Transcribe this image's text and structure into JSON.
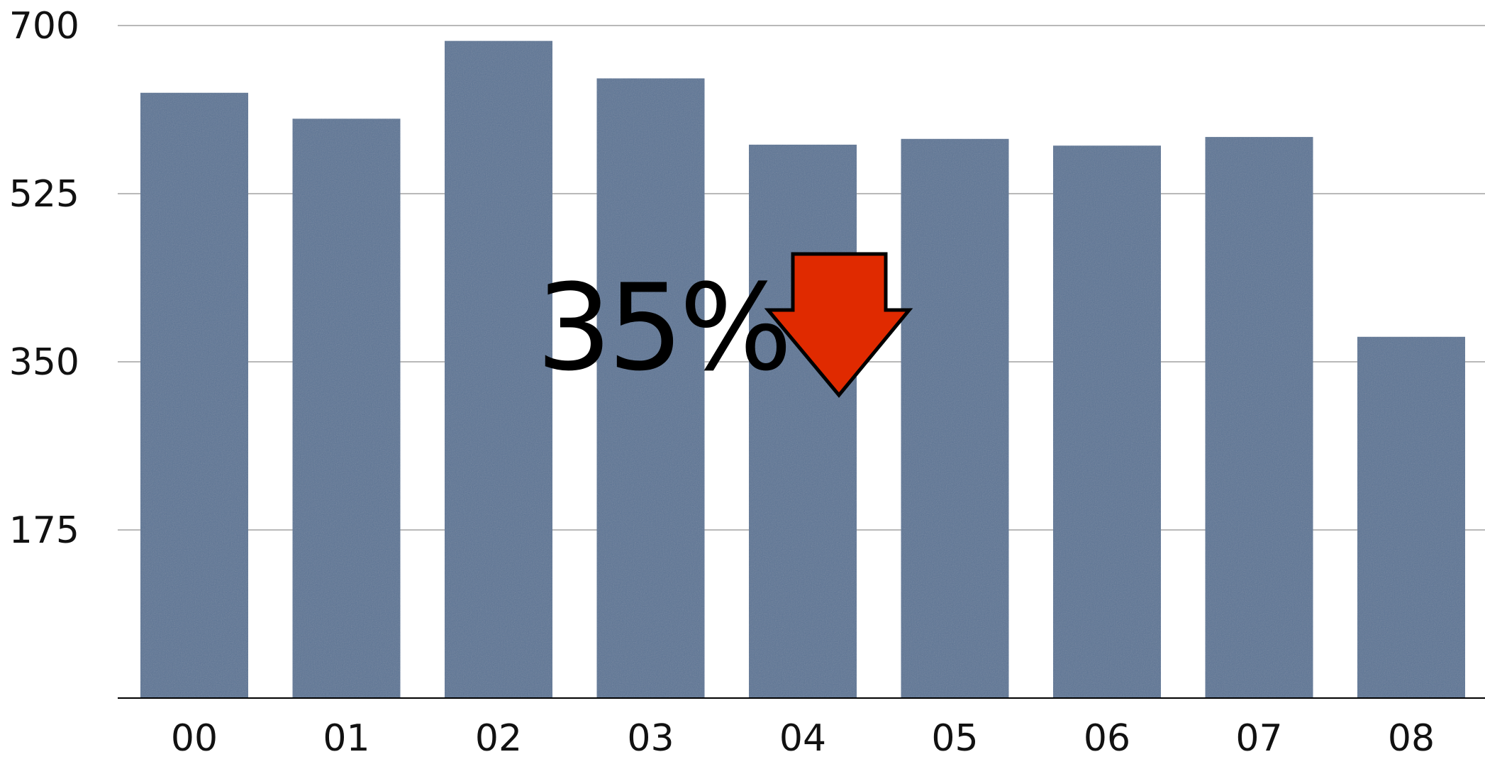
{
  "chart_data": {
    "type": "bar",
    "categories": [
      "00",
      "01",
      "02",
      "03",
      "04",
      "05",
      "06",
      "07",
      "08"
    ],
    "values": [
      630,
      603,
      684,
      645,
      576,
      582,
      575,
      584,
      376
    ],
    "ylim": [
      0,
      700
    ],
    "yticks": [
      175,
      350,
      525,
      700
    ],
    "ytick_labels": [
      "175",
      "350",
      "525",
      "700"
    ],
    "grid": true,
    "legend": "none",
    "bar_color": "#5b7595",
    "annotation": {
      "text": "35%",
      "arrow": "down",
      "arrow_color": "#e02a00"
    }
  }
}
